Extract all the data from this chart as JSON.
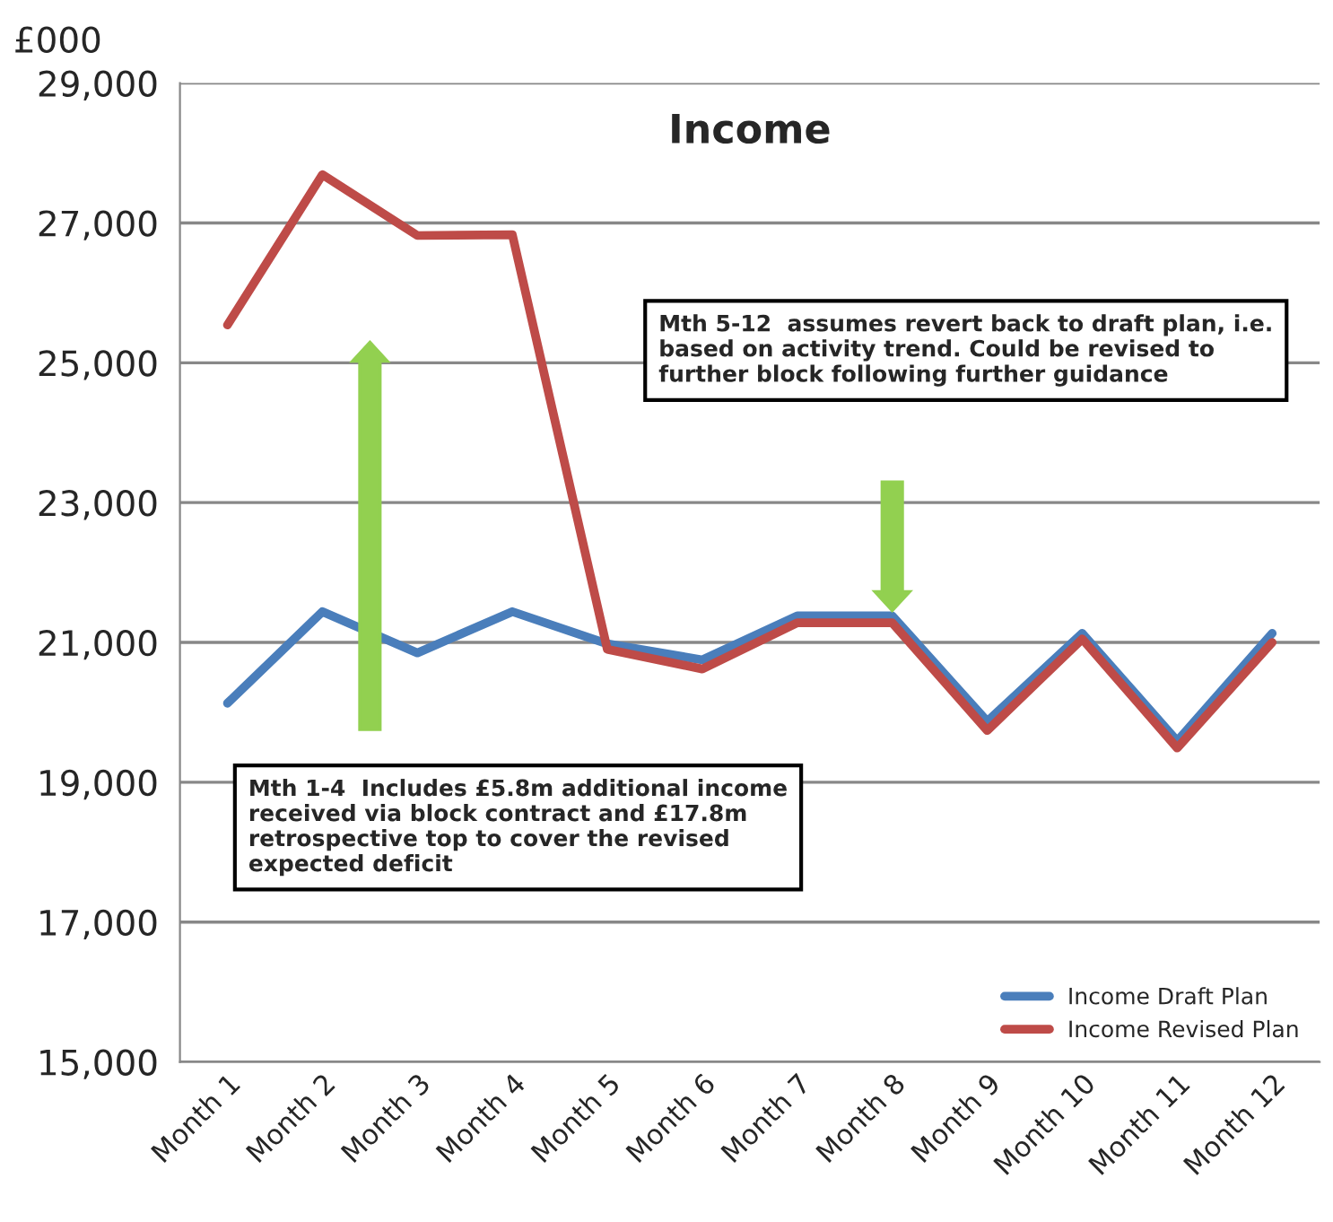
{
  "chart_data": {
    "type": "line",
    "title": "Income",
    "ylabel": "£000",
    "categories": [
      "Month 1",
      "Month 2",
      "Month 3",
      "Month 4",
      "Month 5",
      "Month 6",
      "Month 7",
      "Month 8",
      "Month 9",
      "Month 10",
      "Month 11",
      "Month 12"
    ],
    "series": [
      {
        "name": "Income Draft Plan",
        "color": "#4a7ebb",
        "values": [
          20130,
          21440,
          20850,
          21440,
          20980,
          20750,
          21380,
          21380,
          19870,
          21130,
          19590,
          21130
        ]
      },
      {
        "name": "Income Revised Plan",
        "color": "#be4b48",
        "values": [
          25540,
          27690,
          26820,
          26830,
          20900,
          20620,
          21280,
          21280,
          19740,
          21050,
          19490,
          21000
        ]
      }
    ],
    "ylim": [
      15000,
      29000
    ],
    "yticks": [
      {
        "value": 15000,
        "label": "15,000"
      },
      {
        "value": 17000,
        "label": "17,000"
      },
      {
        "value": 19000,
        "label": "19,000"
      },
      {
        "value": 21000,
        "label": "21,000"
      },
      {
        "value": 23000,
        "label": "23,000"
      },
      {
        "value": 25000,
        "label": "25,000"
      },
      {
        "value": 27000,
        "label": "27,000"
      },
      {
        "value": 29000,
        "label": "29,000"
      }
    ],
    "grid": "y",
    "legend": "bottom right",
    "marker": "none",
    "line_style": "solid",
    "annotations": [
      "Mth 1-4  Includes £5.8m additional income received via block contract and £17.8m retrospective top to cover the revised expected deficit",
      "Mth 5-12  assumes revert back to draft plan, i.e. based on activity trend. Could be revised to further block following further guidance"
    ]
  }
}
